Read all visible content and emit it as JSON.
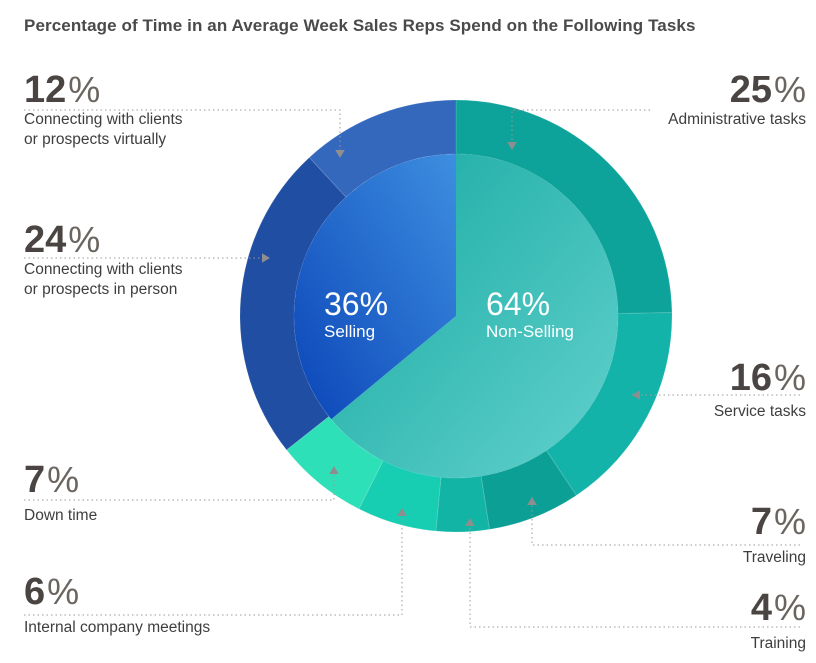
{
  "title": "Percentage of Time in an Average Week Sales Reps Spend on the Following Tasks",
  "chart_data": {
    "type": "pie",
    "title": "Percentage of Time in an Average Week Sales Reps Spend on the Following Tasks",
    "inner": [
      {
        "name": "Selling",
        "value": 36,
        "value_label": "36%",
        "color": "#2a6fd6"
      },
      {
        "name": "Non-Selling",
        "value": 64,
        "value_label": "64%",
        "color": "#4cc4c0"
      }
    ],
    "outer": [
      {
        "name": "Administrative tasks",
        "value": 25,
        "value_label": "25",
        "color": "#0ea39a"
      },
      {
        "name": "Service tasks",
        "value": 16,
        "value_label": "16",
        "color": "#14b3aa"
      },
      {
        "name": "Traveling",
        "value": 7,
        "value_label": "7",
        "color": "#0c9f95"
      },
      {
        "name": "Training",
        "value": 4,
        "value_label": "4",
        "color": "#12b5a5"
      },
      {
        "name": "Internal company meetings",
        "value": 6,
        "value_label": "6",
        "color": "#17cdb2"
      },
      {
        "name": "Down time",
        "value": 7,
        "value_label": "7",
        "color": "#2ee0b8"
      },
      {
        "name": "Connecting with clients\nor prospects in person",
        "value": 24,
        "value_label": "24",
        "color": "#1f4ea3"
      },
      {
        "name": "Connecting with clients\nor prospects virtually",
        "value": 12,
        "value_label": "12",
        "color": "#3468bd"
      }
    ],
    "percent_sign": "%",
    "legend": "callouts"
  }
}
